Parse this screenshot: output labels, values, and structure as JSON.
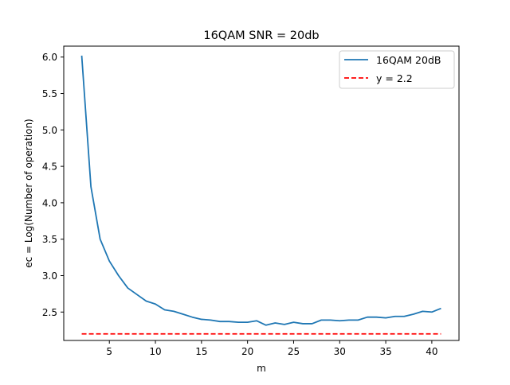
{
  "chart_data": {
    "type": "line",
    "title": "16QAM SNR = 20db",
    "xlabel": "m",
    "ylabel": "ec = Log(Number of operation)",
    "xlim": [
      0.05,
      42.95
    ],
    "ylim": [
      2.11,
      6.15
    ],
    "xticks": [
      5,
      10,
      15,
      20,
      25,
      30,
      35,
      40
    ],
    "yticks": [
      2.5,
      3.0,
      3.5,
      4.0,
      4.5,
      5.0,
      5.5,
      6.0
    ],
    "xtick_labels": [
      "5",
      "10",
      "15",
      "20",
      "25",
      "30",
      "35",
      "40"
    ],
    "ytick_labels": [
      "2.5",
      "3.0",
      "3.5",
      "4.0",
      "4.5",
      "5.0",
      "5.5",
      "6.0"
    ],
    "grid": false,
    "legend_position": "top-right",
    "x": [
      2,
      3,
      4,
      5,
      6,
      7,
      8,
      9,
      10,
      11,
      12,
      13,
      14,
      15,
      16,
      17,
      18,
      19,
      20,
      21,
      22,
      23,
      24,
      25,
      26,
      27,
      28,
      29,
      30,
      31,
      32,
      33,
      34,
      35,
      36,
      37,
      38,
      39,
      40,
      41
    ],
    "series": [
      {
        "name": "16QAM 20dB",
        "color": "#1f77b4",
        "style": "solid",
        "values": [
          6.02,
          4.22,
          3.5,
          3.2,
          3.0,
          2.83,
          2.74,
          2.65,
          2.61,
          2.53,
          2.51,
          2.47,
          2.43,
          2.4,
          2.39,
          2.37,
          2.37,
          2.36,
          2.36,
          2.38,
          2.32,
          2.35,
          2.33,
          2.36,
          2.34,
          2.34,
          2.39,
          2.39,
          2.38,
          2.39,
          2.39,
          2.43,
          2.43,
          2.42,
          2.44,
          2.44,
          2.47,
          2.51,
          2.5,
          2.55
        ]
      },
      {
        "name": "y = 2.2",
        "color": "#ff0000",
        "style": "dashed",
        "values": [
          2.2,
          2.2,
          2.2,
          2.2,
          2.2,
          2.2,
          2.2,
          2.2,
          2.2,
          2.2,
          2.2,
          2.2,
          2.2,
          2.2,
          2.2,
          2.2,
          2.2,
          2.2,
          2.2,
          2.2,
          2.2,
          2.2,
          2.2,
          2.2,
          2.2,
          2.2,
          2.2,
          2.2,
          2.2,
          2.2,
          2.2,
          2.2,
          2.2,
          2.2,
          2.2,
          2.2,
          2.2,
          2.2,
          2.2,
          2.2
        ]
      }
    ]
  }
}
